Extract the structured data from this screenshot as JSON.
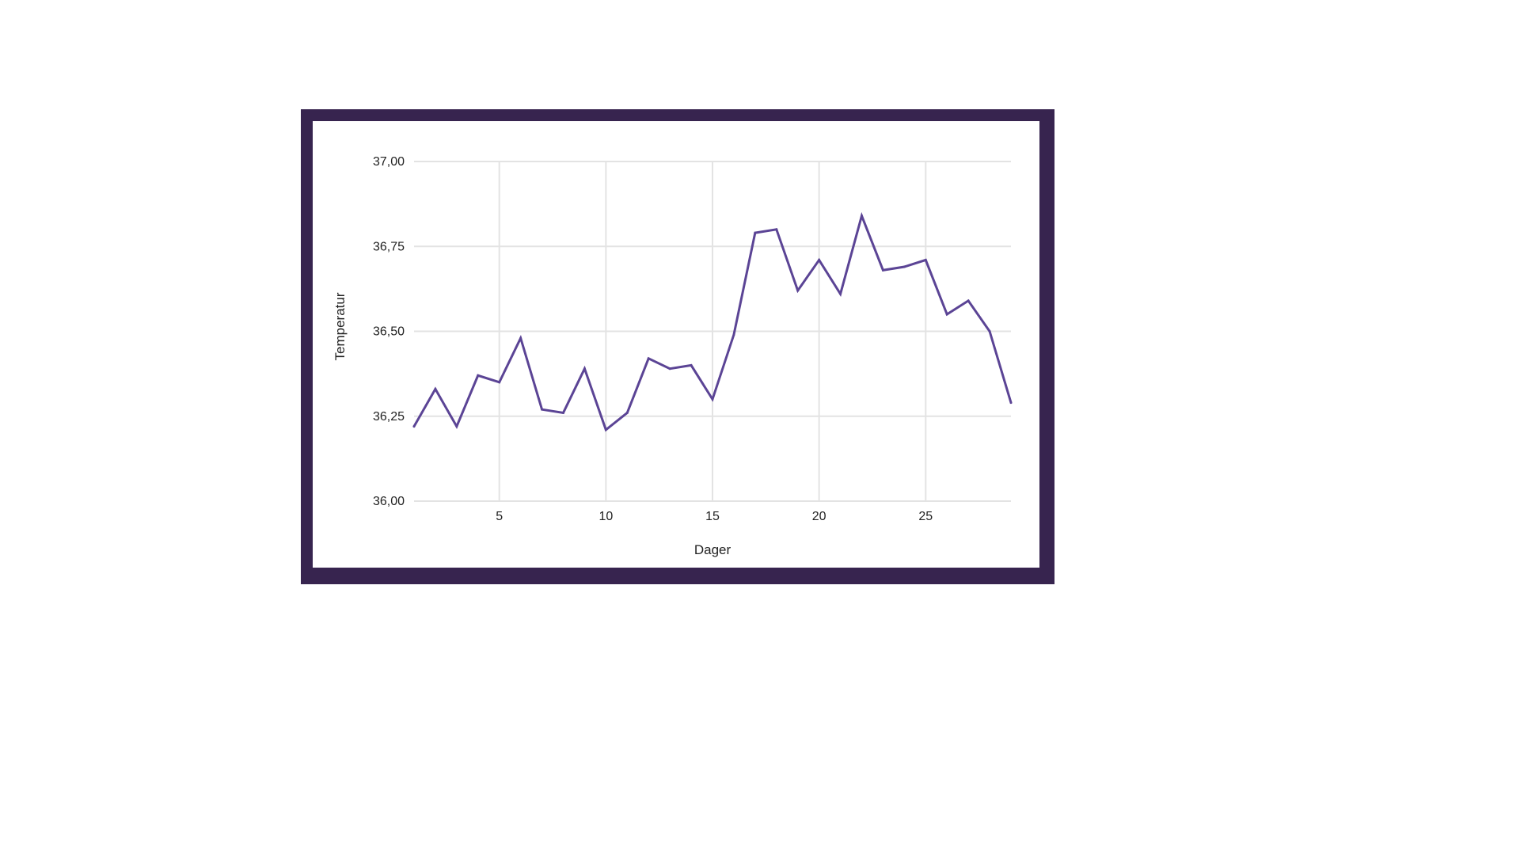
{
  "chart_data": {
    "type": "line",
    "title": "",
    "xlabel": "Dager",
    "ylabel": "Temperatur",
    "xlim": [
      1,
      29
    ],
    "ylim": [
      36.0,
      37.0
    ],
    "x_ticks": [
      5,
      10,
      15,
      20,
      25
    ],
    "x_tick_labels": [
      "5",
      "10",
      "15",
      "20",
      "25"
    ],
    "y_ticks": [
      36.0,
      36.25,
      36.5,
      36.75,
      37.0
    ],
    "y_tick_labels": [
      "36,00",
      "36,25",
      "36,50",
      "36,75",
      "37,00"
    ],
    "grid": true,
    "legend": "none",
    "line_color": "#5b4495",
    "frame_color": "#37244f",
    "x": [
      1,
      2,
      3,
      4,
      5,
      6,
      7,
      8,
      9,
      10,
      11,
      12,
      13,
      14,
      15,
      16,
      17,
      18,
      19,
      20,
      21,
      22,
      23,
      24,
      25,
      26,
      27,
      28,
      29
    ],
    "series": [
      {
        "values": [
          36.22,
          36.33,
          36.22,
          36.37,
          36.35,
          36.48,
          36.27,
          36.26,
          36.39,
          36.21,
          36.26,
          36.42,
          36.39,
          36.4,
          36.3,
          36.49,
          36.79,
          36.8,
          36.62,
          36.71,
          36.61,
          36.84,
          36.68,
          36.69,
          36.71,
          36.55,
          36.59,
          36.5,
          36.29
        ]
      }
    ]
  }
}
